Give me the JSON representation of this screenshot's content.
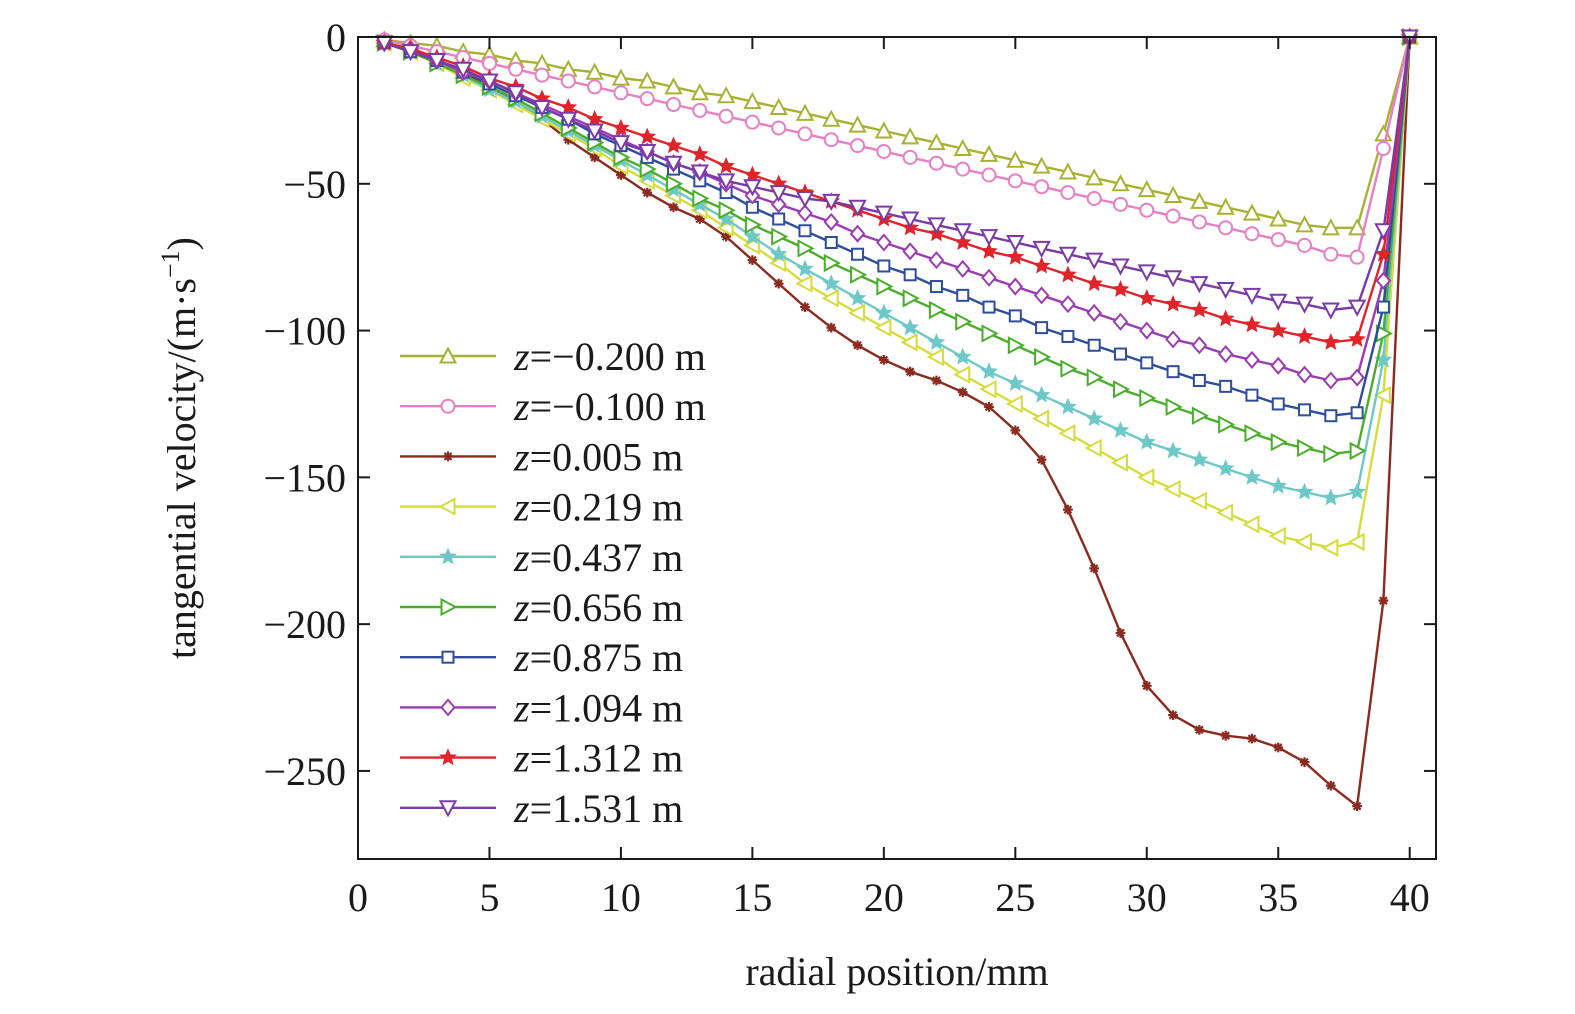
{
  "chart_data": {
    "type": "line",
    "title": "",
    "xlabel": "radial position/mm",
    "ylabel": "tangential velocity/(m·s",
    "ylabel_sup": "−1",
    "ylabel_end": ")",
    "xlim": [
      0,
      41
    ],
    "ylim": [
      -280,
      0
    ],
    "xticks": [
      0,
      5,
      10,
      15,
      20,
      25,
      30,
      35,
      40
    ],
    "xtick_labels": [
      "0",
      "5",
      "10",
      "15",
      "20",
      "25",
      "30",
      "35",
      "40"
    ],
    "yticks": [
      0,
      -50,
      -100,
      -150,
      -200,
      -250
    ],
    "ytick_labels": [
      "0",
      "−50",
      "−100",
      "−150",
      "−200",
      "−250"
    ],
    "grid": false,
    "legend_position": "lower-left",
    "x": [
      1,
      2,
      3,
      4,
      5,
      6,
      7,
      8,
      9,
      10,
      11,
      12,
      13,
      14,
      15,
      16,
      17,
      18,
      19,
      20,
      21,
      22,
      23,
      24,
      25,
      26,
      27,
      28,
      29,
      30,
      31,
      32,
      33,
      34,
      35,
      36,
      37,
      38,
      39,
      40
    ],
    "series": [
      {
        "name": "z=−0.200 m",
        "name_var": "z",
        "name_rest": "=−0.200 m",
        "color": "#a8b232",
        "marker": "triangle-up",
        "values": [
          -1,
          -2,
          -3,
          -5,
          -6,
          -8,
          -9,
          -11,
          -12,
          -14,
          -15,
          -17,
          -19,
          -20,
          -22,
          -24,
          -26,
          -28,
          -30,
          -32,
          -34,
          -36,
          -38,
          -40,
          -42,
          -44,
          -46,
          -48,
          -50,
          -52,
          -54,
          -56,
          -58,
          -60,
          -62,
          -64,
          -65,
          -65,
          -33,
          0
        ]
      },
      {
        "name": "z=−0.100 m",
        "name_var": "z",
        "name_rest": "=−0.100 m",
        "color": "#e87fc4",
        "marker": "circle",
        "values": [
          -1,
          -3,
          -5,
          -7,
          -9,
          -11,
          -13,
          -15,
          -17,
          -19,
          -21,
          -23,
          -25,
          -27,
          -29,
          -31,
          -33,
          -35,
          -37,
          -39,
          -41,
          -43,
          -45,
          -47,
          -49,
          -51,
          -53,
          -55,
          -57,
          -59,
          -61,
          -63,
          -65,
          -67,
          -69,
          -71,
          -74,
          -75,
          -38,
          0
        ]
      },
      {
        "name": "z=0.005 m",
        "name_var": "z",
        "name_rest": "=0.005 m",
        "color": "#8b2a1e",
        "marker": "asterisk",
        "values": [
          -2,
          -4,
          -8,
          -12,
          -17,
          -22,
          -28,
          -35,
          -41,
          -47,
          -53,
          -58,
          -62,
          -68,
          -76,
          -84,
          -92,
          -99,
          -105,
          -110,
          -114,
          -117,
          -121,
          -126,
          -134,
          -144,
          -161,
          -181,
          -203,
          -221,
          -231,
          -236,
          -238,
          -239,
          -242,
          -247,
          -255,
          -262,
          -192,
          0
        ]
      },
      {
        "name": "z=0.219 m",
        "name_var": "z",
        "name_rest": "=0.219 m",
        "color": "#d6dc3c",
        "marker": "triangle-left",
        "values": [
          -2,
          -5,
          -9,
          -14,
          -18,
          -23,
          -28,
          -33,
          -38,
          -44,
          -49,
          -54,
          -59,
          -65,
          -71,
          -77,
          -84,
          -89,
          -94,
          -99,
          -104,
          -109,
          -115,
          -120,
          -125,
          -130,
          -135,
          -140,
          -145,
          -150,
          -154,
          -158,
          -162,
          -166,
          -170,
          -172,
          -174,
          -172,
          -122,
          0
        ]
      },
      {
        "name": "z=0.437 m",
        "name_var": "z",
        "name_rest": "=0.437 m",
        "color": "#6fc8c8",
        "marker": "star",
        "values": [
          -2,
          -5,
          -9,
          -13,
          -18,
          -22,
          -27,
          -32,
          -37,
          -42,
          -47,
          -52,
          -57,
          -62,
          -68,
          -74,
          -79,
          -84,
          -89,
          -94,
          -99,
          -104,
          -109,
          -114,
          -118,
          -122,
          -126,
          -130,
          -134,
          -138,
          -141,
          -144,
          -147,
          -150,
          -153,
          -155,
          -157,
          -155,
          -110,
          0
        ]
      },
      {
        "name": "z=0.656 m",
        "name_var": "z",
        "name_rest": "=0.656 m",
        "color": "#4aae2c",
        "marker": "triangle-right",
        "values": [
          -2,
          -5,
          -9,
          -13,
          -17,
          -21,
          -26,
          -31,
          -36,
          -41,
          -45,
          -50,
          -55,
          -59,
          -64,
          -68,
          -72,
          -77,
          -81,
          -85,
          -89,
          -93,
          -97,
          -101,
          -105,
          -109,
          -113,
          -116,
          -120,
          -123,
          -126,
          -129,
          -132,
          -135,
          -138,
          -140,
          -142,
          -141,
          -101,
          0
        ]
      },
      {
        "name": "z=0.875 m",
        "name_var": "z",
        "name_rest": "=0.875 m",
        "color": "#2e4e9c",
        "marker": "square",
        "values": [
          -2,
          -5,
          -8,
          -12,
          -16,
          -20,
          -24,
          -28,
          -33,
          -37,
          -41,
          -45,
          -49,
          -53,
          -58,
          -62,
          -66,
          -70,
          -74,
          -78,
          -81,
          -85,
          -88,
          -92,
          -95,
          -99,
          -102,
          -105,
          -108,
          -111,
          -114,
          -117,
          -119,
          -122,
          -125,
          -127,
          -129,
          -128,
          -92,
          0
        ]
      },
      {
        "name": "z=1.094 m",
        "name_var": "z",
        "name_rest": "=1.094 m",
        "color": "#9c3cb4",
        "marker": "diamond",
        "values": [
          -2,
          -4,
          -8,
          -12,
          -15,
          -19,
          -23,
          -27,
          -31,
          -35,
          -39,
          -43,
          -46,
          -50,
          -54,
          -57,
          -60,
          -63,
          -67,
          -70,
          -73,
          -76,
          -79,
          -82,
          -85,
          -88,
          -91,
          -94,
          -97,
          -100,
          -103,
          -105,
          -108,
          -110,
          -112,
          -115,
          -117,
          -116,
          -83,
          0
        ]
      },
      {
        "name": "z=1.312 m",
        "name_var": "z",
        "name_rest": "=1.312 m",
        "color": "#e0242a",
        "marker": "star",
        "values": [
          -2,
          -4,
          -7,
          -10,
          -14,
          -17,
          -21,
          -24,
          -28,
          -31,
          -34,
          -37,
          -40,
          -44,
          -47,
          -50,
          -53,
          -56,
          -59,
          -62,
          -65,
          -67,
          -70,
          -73,
          -75,
          -78,
          -81,
          -84,
          -86,
          -89,
          -91,
          -93,
          -96,
          -98,
          -100,
          -102,
          -104,
          -103,
          -74,
          0
        ]
      },
      {
        "name": "z=1.531 m",
        "name_var": "z",
        "name_rest": "=1.531 m",
        "color": "#7a3aa8",
        "marker": "triangle-down",
        "values": [
          -2,
          -5,
          -8,
          -11,
          -15,
          -19,
          -24,
          -28,
          -32,
          -36,
          -39,
          -43,
          -46,
          -49,
          -51,
          -53,
          -55,
          -56,
          -58,
          -60,
          -62,
          -64,
          -66,
          -68,
          -70,
          -72,
          -74,
          -76,
          -78,
          -80,
          -82,
          -84,
          -86,
          -88,
          -90,
          -91,
          -93,
          -92,
          -66,
          0
        ]
      }
    ]
  }
}
